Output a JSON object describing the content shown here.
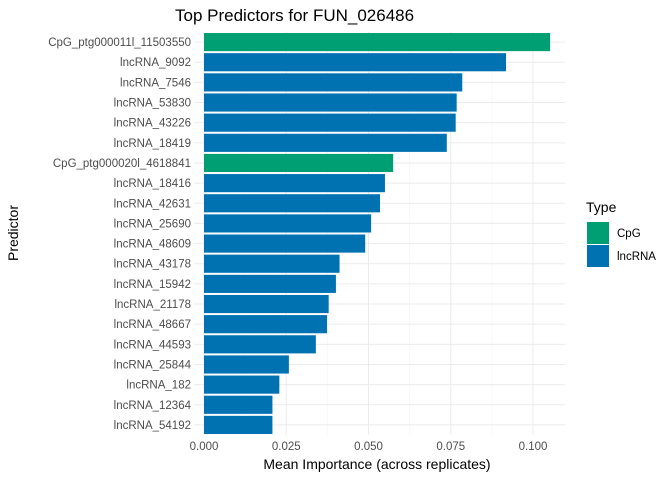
{
  "chart_data": {
    "type": "bar",
    "orientation": "horizontal",
    "title": "Top Predictors for FUN_026486",
    "xlabel": "Mean Importance (across replicates)",
    "ylabel": "Predictor",
    "xlim": [
      0,
      0.11
    ],
    "xticks": [
      "0.000",
      "0.025",
      "0.050",
      "0.075",
      "0.100"
    ],
    "grid": true,
    "legend": {
      "title": "Type",
      "position": "right",
      "entries": [
        {
          "label": "CpG",
          "color": "#009E73"
        },
        {
          "label": "lncRNA",
          "color": "#0072B2"
        }
      ]
    },
    "bars": [
      {
        "label": "CpG_ptg000011l_11503550",
        "value": 0.1052,
        "type": "CpG"
      },
      {
        "label": "lncRNA_9092",
        "value": 0.0918,
        "type": "lncRNA"
      },
      {
        "label": "lncRNA_7546",
        "value": 0.0785,
        "type": "lncRNA"
      },
      {
        "label": "lncRNA_53830",
        "value": 0.0768,
        "type": "lncRNA"
      },
      {
        "label": "lncRNA_43226",
        "value": 0.0765,
        "type": "lncRNA"
      },
      {
        "label": "lncRNA_18419",
        "value": 0.0738,
        "type": "lncRNA"
      },
      {
        "label": "CpG_ptg000020l_4618841",
        "value": 0.0575,
        "type": "CpG"
      },
      {
        "label": "lncRNA_18416",
        "value": 0.055,
        "type": "lncRNA"
      },
      {
        "label": "lncRNA_42631",
        "value": 0.0535,
        "type": "lncRNA"
      },
      {
        "label": "lncRNA_25690",
        "value": 0.0508,
        "type": "lncRNA"
      },
      {
        "label": "lncRNA_48609",
        "value": 0.049,
        "type": "lncRNA"
      },
      {
        "label": "lncRNA_43178",
        "value": 0.0412,
        "type": "lncRNA"
      },
      {
        "label": "lncRNA_15942",
        "value": 0.0401,
        "type": "lncRNA"
      },
      {
        "label": "lncRNA_21178",
        "value": 0.0379,
        "type": "lncRNA"
      },
      {
        "label": "lncRNA_48667",
        "value": 0.0374,
        "type": "lncRNA"
      },
      {
        "label": "lncRNA_44593",
        "value": 0.034,
        "type": "lncRNA"
      },
      {
        "label": "lncRNA_25844",
        "value": 0.0258,
        "type": "lncRNA"
      },
      {
        "label": "lncRNA_182",
        "value": 0.0229,
        "type": "lncRNA"
      },
      {
        "label": "lncRNA_12364",
        "value": 0.0208,
        "type": "lncRNA"
      },
      {
        "label": "lncRNA_54192",
        "value": 0.0208,
        "type": "lncRNA"
      }
    ]
  }
}
